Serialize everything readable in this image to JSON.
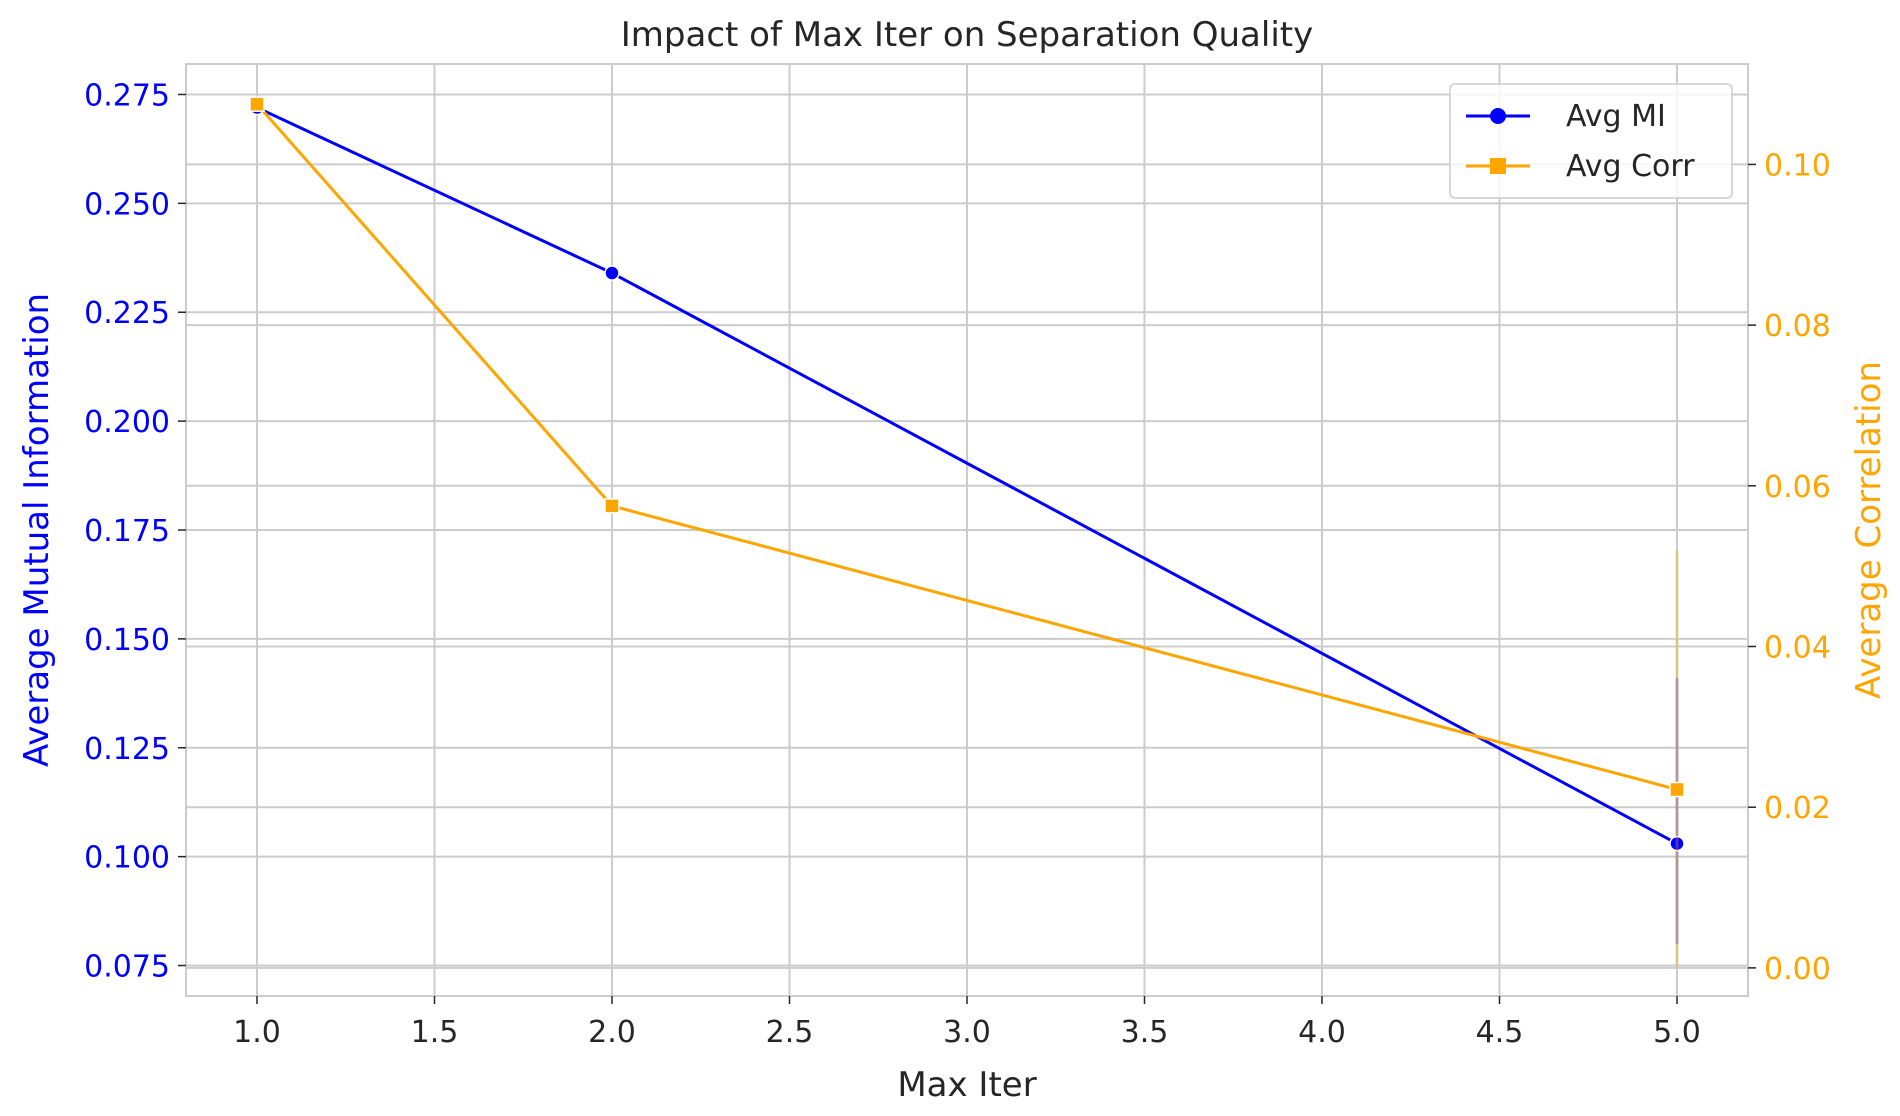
{
  "chart_data": {
    "type": "line",
    "title": "Impact of Max Iter on Separation Quality",
    "xlabel": "Max Iter",
    "ylabel_left": "Average Mutual Information",
    "ylabel_right": "Average Correlation",
    "xlim": [
      0.8,
      5.2
    ],
    "ylim_left": [
      0.068,
      0.282
    ],
    "ylim_right": [
      -0.0035,
      0.1125
    ],
    "x_ticks": [
      1.0,
      1.5,
      2.0,
      2.5,
      3.0,
      3.5,
      4.0,
      4.5,
      5.0
    ],
    "x_tick_labels": [
      "1.0",
      "1.5",
      "2.0",
      "2.5",
      "3.0",
      "3.5",
      "4.0",
      "4.5",
      "5.0"
    ],
    "y_left_ticks": [
      0.075,
      0.1,
      0.125,
      0.15,
      0.175,
      0.2,
      0.225,
      0.25,
      0.275
    ],
    "y_left_tick_labels": [
      "0.075",
      "0.100",
      "0.125",
      "0.150",
      "0.175",
      "0.200",
      "0.225",
      "0.250",
      "0.275"
    ],
    "y_right_ticks": [
      0.0,
      0.02,
      0.04,
      0.06,
      0.08,
      0.1
    ],
    "y_right_tick_labels": [
      "0.00",
      "0.02",
      "0.04",
      "0.06",
      "0.08",
      "0.10"
    ],
    "grid": true,
    "legend_position": "top-right",
    "series": [
      {
        "name": "Avg MI",
        "axis": "left",
        "marker": "circle",
        "color": "#0000ff",
        "x": [
          1,
          2,
          5
        ],
        "values": [
          0.272,
          0.234,
          0.103
        ],
        "error_at_x5": [
          0.08,
          0.141
        ]
      },
      {
        "name": "Avg Corr",
        "axis": "right",
        "marker": "square",
        "color": "#ffa500",
        "x": [
          1,
          2,
          5
        ],
        "values": [
          0.1075,
          0.0575,
          0.0222
        ],
        "error_at_x5": [
          -0.0,
          0.052
        ]
      }
    ],
    "colors": {
      "left_axis": "#0000ff",
      "right_axis": "#ffa500",
      "grid": "#cccccc",
      "spine": "#cccccc",
      "text": "#262626"
    }
  }
}
